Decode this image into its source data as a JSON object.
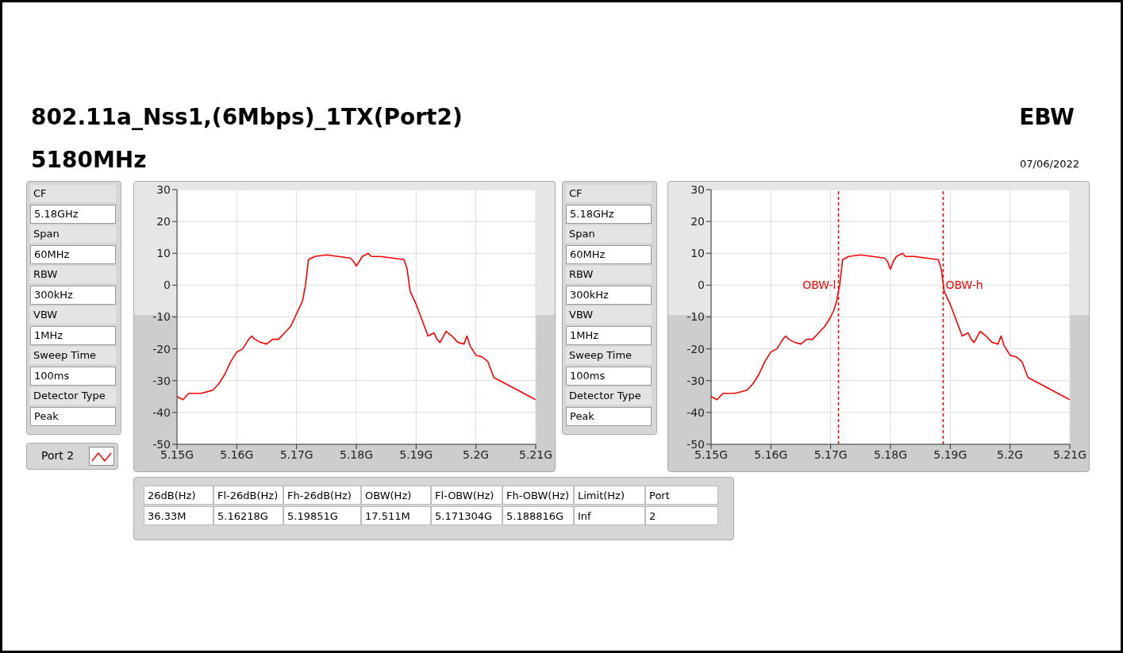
{
  "chart_data": [
    {
      "type": "other",
      "title": "802.11a_Nss1,(6Mbps)_1TX(Port2)",
      "subtitle": "5180MHz",
      "annotations": [
        "EBW",
        "07/06/2022"
      ]
    },
    {
      "type": "other",
      "annotations": [
        "CF",
        "5.18GHz",
        "Span",
        "60MHz",
        "RBW",
        "300kHz",
        "VBW",
        "1MHz",
        "Sweep Time",
        "100ms",
        "Detector Type",
        "Peak"
      ]
    },
    {
      "type": "line",
      "legend": "bottom left",
      "grid": true,
      "xlim": [
        5.15,
        5.21
      ],
      "ylim": [
        -50,
        30
      ],
      "yticks": [
        -50,
        -40,
        -30,
        -20,
        -10,
        0,
        10,
        20,
        30
      ],
      "xticks": [
        {
          "value": 5.15,
          "label": "5.15G"
        },
        {
          "value": 5.16,
          "label": "5.16G"
        },
        {
          "value": 5.17,
          "label": "5.17G"
        },
        {
          "value": 5.18,
          "label": "5.18G"
        },
        {
          "value": 5.19,
          "label": "5.19G"
        },
        {
          "value": 5.2,
          "label": "5.2G"
        },
        {
          "value": 5.21,
          "label": "5.21G"
        }
      ],
      "series": [
        {
          "name": "Port 2",
          "color": "#ff0000",
          "x": [
            5.15,
            5.151,
            5.152,
            5.154,
            5.156,
            5.157,
            5.158,
            5.159,
            5.16,
            5.161,
            5.162,
            5.1625,
            5.163,
            5.164,
            5.165,
            5.166,
            5.167,
            5.168,
            5.169,
            5.17,
            5.1705,
            5.171,
            5.1715,
            5.172,
            5.173,
            5.175,
            5.177,
            5.179,
            5.1795,
            5.18,
            5.1805,
            5.181,
            5.182,
            5.1825,
            5.184,
            5.186,
            5.188,
            5.1885,
            5.189,
            5.19,
            5.191,
            5.192,
            5.193,
            5.1935,
            5.194,
            5.195,
            5.196,
            5.197,
            5.198,
            5.1985,
            5.199,
            5.2,
            5.201,
            5.202,
            5.203,
            5.205,
            5.207,
            5.209,
            5.21
          ],
          "values": [
            -35,
            -36,
            -34,
            -34,
            -33,
            -31,
            -28,
            -24,
            -21,
            -20,
            -17,
            -16,
            -17,
            -18,
            -18.5,
            -17,
            -17,
            -15,
            -13,
            -9,
            -7,
            -5,
            0,
            8,
            9,
            9.5,
            9,
            8.5,
            7.5,
            6,
            7.5,
            9,
            10,
            9,
            9,
            8.5,
            8,
            5,
            -2,
            -6,
            -11,
            -16,
            -15,
            -17,
            -18,
            -14.5,
            -16,
            -18,
            -18.5,
            -16,
            -19,
            -22,
            -22.5,
            -24,
            -29,
            -31,
            -33,
            -35,
            -36
          ]
        }
      ]
    },
    {
      "type": "other",
      "annotations": [
        "CF",
        "5.18GHz",
        "Span",
        "60MHz",
        "RBW",
        "300kHz",
        "VBW",
        "1MHz",
        "Sweep Time",
        "100ms",
        "Detector Type",
        "Peak"
      ]
    },
    {
      "type": "line",
      "grid": true,
      "xlim": [
        5.15,
        5.21
      ],
      "ylim": [
        -50,
        30
      ],
      "yticks": [
        -50,
        -40,
        -30,
        -20,
        -10,
        0,
        10,
        20,
        30
      ],
      "xticks": [
        {
          "value": 5.15,
          "label": "5.15G"
        },
        {
          "value": 5.16,
          "label": "5.16G"
        },
        {
          "value": 5.17,
          "label": "5.17G"
        },
        {
          "value": 5.18,
          "label": "5.18G"
        },
        {
          "value": 5.19,
          "label": "5.19G"
        },
        {
          "value": 5.2,
          "label": "5.2G"
        },
        {
          "value": 5.21,
          "label": "5.21G"
        }
      ],
      "ref_lines": [
        {
          "axis": "x",
          "value": 5.171304,
          "label": "OBW-l",
          "color": "#ff0000",
          "line_style": "dashed"
        },
        {
          "axis": "x",
          "value": 5.188816,
          "label": "OBW-h",
          "color": "#ff0000",
          "line_style": "dashed"
        }
      ],
      "series": [
        {
          "color": "#ff0000",
          "x": [
            5.15,
            5.151,
            5.152,
            5.154,
            5.156,
            5.157,
            5.158,
            5.159,
            5.16,
            5.161,
            5.162,
            5.1625,
            5.163,
            5.164,
            5.165,
            5.166,
            5.167,
            5.168,
            5.169,
            5.17,
            5.1705,
            5.171,
            5.1715,
            5.172,
            5.173,
            5.175,
            5.177,
            5.179,
            5.1795,
            5.18,
            5.1805,
            5.181,
            5.182,
            5.1825,
            5.184,
            5.186,
            5.188,
            5.1885,
            5.189,
            5.19,
            5.191,
            5.192,
            5.193,
            5.1935,
            5.194,
            5.195,
            5.196,
            5.197,
            5.198,
            5.1985,
            5.199,
            5.2,
            5.201,
            5.202,
            5.203,
            5.205,
            5.207,
            5.209,
            5.21
          ],
          "values": [
            -35,
            -36,
            -34,
            -34,
            -33,
            -31,
            -28,
            -24,
            -21,
            -20,
            -17,
            -16,
            -17,
            -18,
            -18.5,
            -17,
            -17,
            -15,
            -13,
            -10,
            -8,
            -5,
            0,
            8,
            9,
            9.5,
            9,
            8.5,
            7.5,
            5,
            7.5,
            9,
            10,
            9,
            9,
            8.5,
            8,
            5,
            -2,
            -6,
            -11,
            -16,
            -15,
            -17,
            -18,
            -14.5,
            -16,
            -18,
            -18.5,
            -16,
            -19,
            -22,
            -22.5,
            -24,
            -29,
            -31,
            -33,
            -35,
            -36
          ]
        }
      ]
    },
    {
      "type": "other",
      "annotations": [
        "26dB(Hz)",
        "Fl-26dB(Hz)",
        "Fh-26dB(Hz)",
        "OBW(Hz)",
        "Fl-OBW(Hz)",
        "Fh-OBW(Hz)",
        "Limit(Hz)",
        "Port",
        "36.33M",
        "5.16218G",
        "5.19851G",
        "17.511M",
        "5.171304G",
        "5.188816G",
        "Inf",
        "2"
      ]
    }
  ]
}
